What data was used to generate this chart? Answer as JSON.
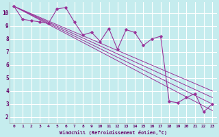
{
  "xlabel": "Windchill (Refroidissement éolien,°C)",
  "background_color": "#c5ecee",
  "grid_color": "#ffffff",
  "line_color": "#993399",
  "xlim": [
    -0.5,
    23.5
  ],
  "ylim": [
    1.5,
    10.8
  ],
  "yticks": [
    2,
    3,
    4,
    5,
    6,
    7,
    8,
    9,
    10
  ],
  "xticks": [
    0,
    1,
    2,
    3,
    4,
    5,
    6,
    7,
    8,
    9,
    10,
    11,
    12,
    13,
    14,
    15,
    16,
    17,
    18,
    19,
    20,
    21,
    22,
    23
  ],
  "jagged_x": [
    0,
    1,
    2,
    3,
    4,
    5,
    6,
    7,
    8,
    9,
    10,
    11,
    12,
    13,
    14,
    15,
    16,
    17,
    18,
    19,
    20,
    21,
    22,
    23
  ],
  "jagged_y": [
    10.5,
    9.5,
    9.4,
    9.3,
    9.2,
    10.3,
    10.4,
    9.3,
    8.3,
    8.5,
    7.8,
    8.8,
    7.2,
    8.7,
    8.5,
    7.5,
    8.0,
    8.2,
    3.2,
    3.1,
    3.5,
    3.8,
    2.4,
    3.0
  ],
  "straight_lines": [
    {
      "x": [
        0,
        23
      ],
      "y": [
        10.5,
        4.0
      ]
    },
    {
      "x": [
        0,
        23
      ],
      "y": [
        10.5,
        3.5
      ]
    },
    {
      "x": [
        0,
        23
      ],
      "y": [
        10.5,
        3.0
      ]
    },
    {
      "x": [
        0,
        23
      ],
      "y": [
        10.5,
        2.5
      ]
    }
  ]
}
